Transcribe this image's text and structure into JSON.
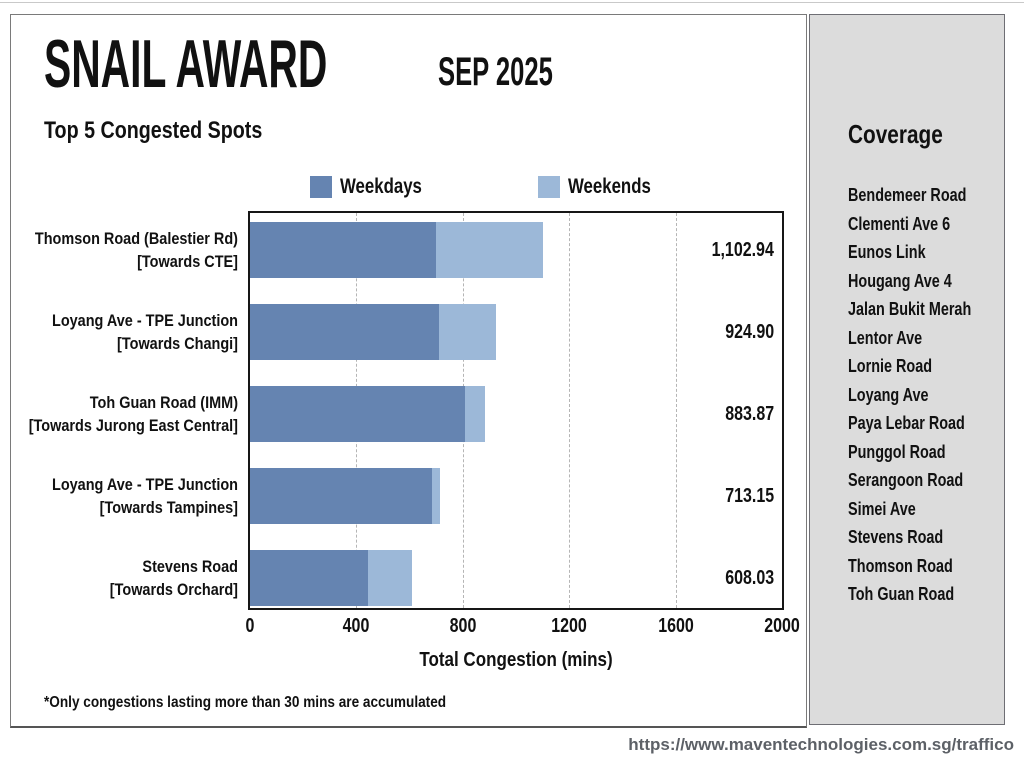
{
  "header": {
    "title": "SNAIL AWARD",
    "period": "SEP 2025",
    "subtitle": "Top 5 Congested Spots"
  },
  "legend": {
    "weekdays_label": "Weekdays",
    "weekends_label": "Weekends"
  },
  "chart_data": {
    "type": "bar",
    "orientation": "horizontal",
    "stacked": true,
    "title": "Top 5 Congested Spots",
    "xlabel": "Total Congestion (mins)",
    "xlim": [
      0,
      2000
    ],
    "xticks": [
      0,
      400,
      800,
      1200,
      1600,
      2000
    ],
    "grid": "vertical-dashed",
    "legend_position": "top",
    "categories": [
      [
        "Thomson Road (Balestier Rd)",
        "[Towards CTE]"
      ],
      [
        "Loyang Ave - TPE Junction",
        "[Towards Changi]"
      ],
      [
        "Toh Guan Road (IMM)",
        "[Towards Jurong East Central]"
      ],
      [
        "Loyang Ave - TPE Junction",
        "[Towards Tampines]"
      ],
      [
        "Stevens Road",
        "[Towards Orchard]"
      ]
    ],
    "series": [
      {
        "name": "Weekdays",
        "color": "#6584B1",
        "values": [
          700,
          711,
          810,
          683,
          445
        ]
      },
      {
        "name": "Weekends",
        "color": "#9CB8D8",
        "values": [
          402.94,
          213.9,
          73.87,
          30.15,
          163.03
        ]
      }
    ],
    "totals": [
      1102.94,
      924.9,
      883.87,
      713.15,
      608.03
    ],
    "total_labels": [
      "1,102.94",
      "924.90",
      "883.87",
      "713.15",
      "608.03"
    ]
  },
  "sidebar": {
    "title": "Coverage",
    "items": [
      "Bendemeer Road",
      "Clementi Ave 6",
      "Eunos Link",
      "Hougang Ave 4",
      "Jalan Bukit Merah",
      "Lentor Ave",
      "Lornie Road",
      "Loyang Ave",
      "Paya Lebar Road",
      "Punggol Road",
      "Serangoon Road",
      "Simei Ave",
      "Stevens Road",
      "Thomson Road",
      "Toh Guan Road"
    ]
  },
  "footnote": "*Only congestions lasting more than 30 mins are accumulated",
  "url": "https://www.maventechnologies.com.sg/traffico",
  "colors": {
    "weekdays": "#6584B1",
    "weekends": "#9CB8D8",
    "sidebar_bg": "#DCDCDC",
    "url_text": "#5D6167"
  }
}
